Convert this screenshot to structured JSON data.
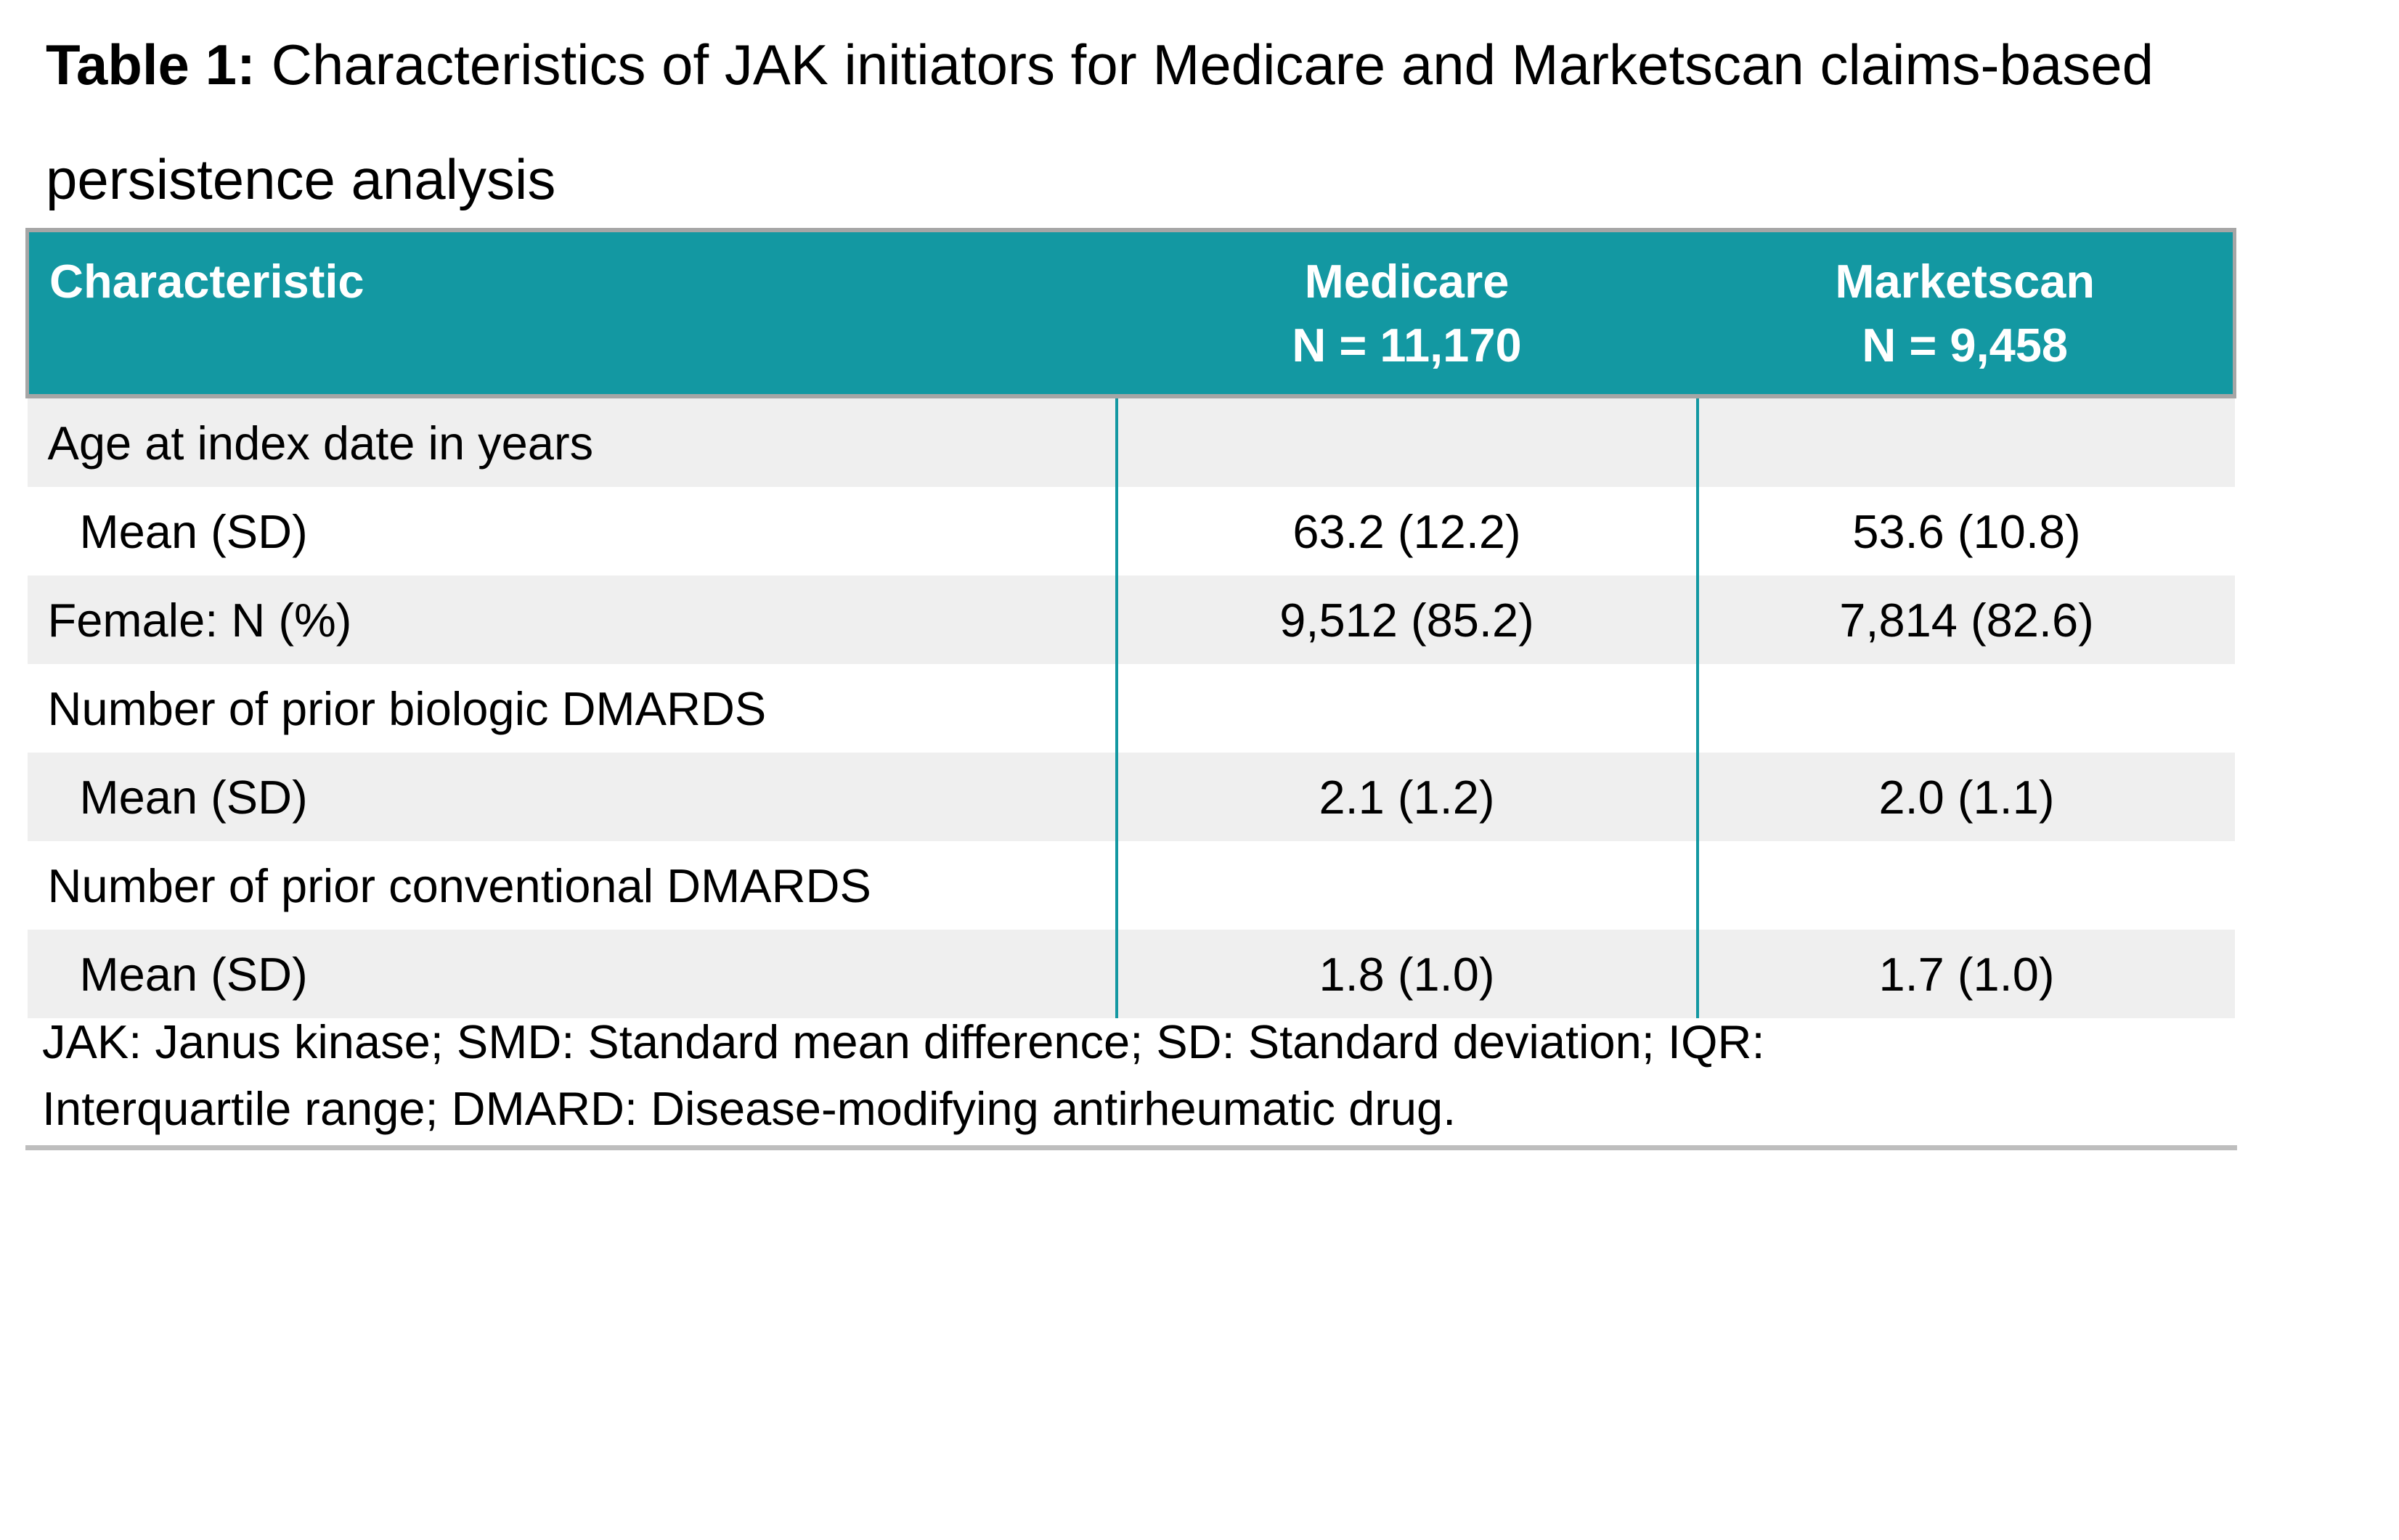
{
  "title": {
    "prefix": "Table 1:",
    "rest": " Characteristics of JAK initiators for Medicare and Marketscan claims-based persistence analysis"
  },
  "table": {
    "header": {
      "characteristic": "Characteristic",
      "medicare_line1": "Medicare",
      "medicare_line2": "N = 11,170",
      "marketscan_line1": "Marketscan",
      "marketscan_line2": "N = 9,458"
    },
    "rows": [
      {
        "label": "Age at index date in years",
        "medicare": "",
        "marketscan": ""
      },
      {
        "label": "Mean (SD)",
        "medicare": "63.2 (12.2)",
        "marketscan": "53.6 (10.8)"
      },
      {
        "label": "Female: N (%)",
        "medicare": "9,512 (85.2)",
        "marketscan": "7,814 (82.6)"
      },
      {
        "label": "Number of prior biologic DMARDS",
        "medicare": "",
        "marketscan": ""
      },
      {
        "label": "Mean (SD)",
        "medicare": "2.1 (1.2)",
        "marketscan": "2.0 (1.1)"
      },
      {
        "label": "Number of prior conventional DMARDS",
        "medicare": "",
        "marketscan": ""
      },
      {
        "label": "Mean (SD)",
        "medicare": "1.8 (1.0)",
        "marketscan": "1.7 (1.0)"
      }
    ]
  },
  "footnote": {
    "line1": "JAK: Janus kinase; SMD: Standard mean difference; SD: Standard deviation; IQR:",
    "line2": "Interquartile range; DMARD: Disease-modifying antirheumatic drug."
  },
  "colors": {
    "header_teal": "#1398A2",
    "row_gray": "#EFEFEF",
    "border_silver": "#A6A6A6",
    "rule_gray": "#BEBEBE"
  }
}
